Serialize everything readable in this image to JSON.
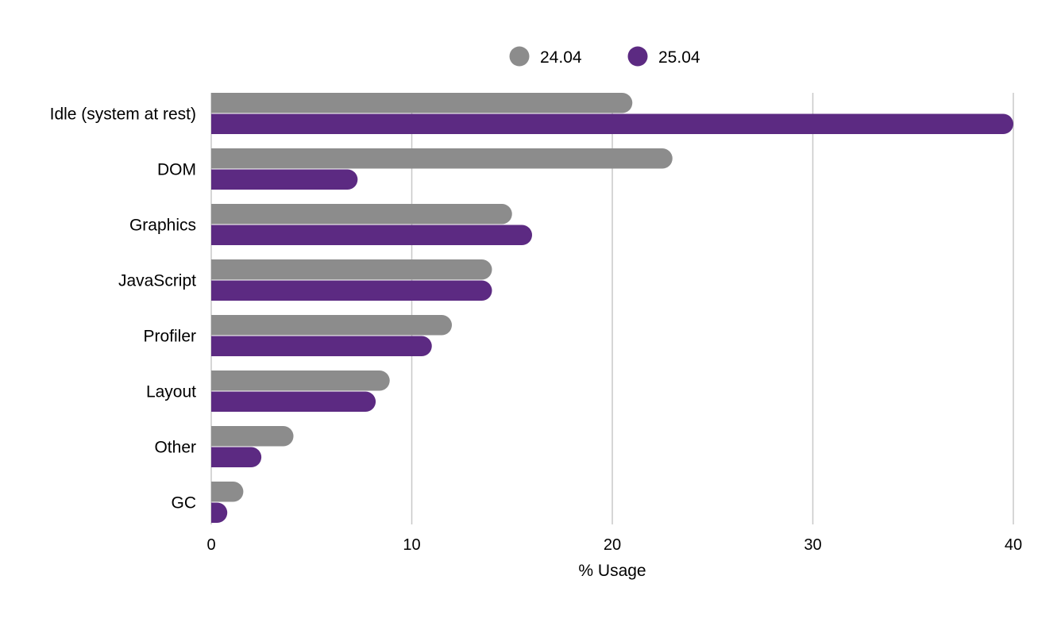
{
  "chart_data": {
    "type": "bar",
    "orientation": "horizontal",
    "categories": [
      "Idle (system at rest)",
      "DOM",
      "Graphics",
      "JavaScript",
      "Profiler",
      "Layout",
      "Other",
      "GC"
    ],
    "series": [
      {
        "name": "24.04",
        "color": "#8c8c8c",
        "values": [
          21,
          23,
          15,
          14,
          12,
          8.9,
          4.1,
          1.6
        ]
      },
      {
        "name": "25.04",
        "color": "#5c2a82",
        "values": [
          40,
          7.3,
          16,
          14,
          11,
          8.2,
          2.5,
          0.8
        ]
      }
    ],
    "xlabel": "% Usage",
    "ylabel": "",
    "xlim": [
      0,
      40
    ],
    "xticks": [
      0,
      10,
      20,
      30,
      40
    ],
    "grid": true,
    "legend_position": "top-center"
  }
}
